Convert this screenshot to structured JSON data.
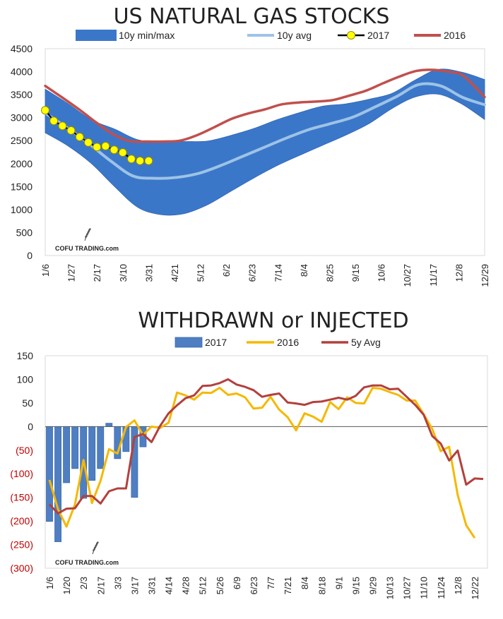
{
  "chart_data": [
    {
      "type": "area",
      "title": "US NATURAL GAS STOCKS",
      "legend": {
        "band": "10y min/max",
        "blank": "",
        "avg": "10y avg",
        "y2017": "2017",
        "y2016": "2016"
      },
      "ylim": [
        0,
        4500
      ],
      "yticks": [
        0,
        500,
        1000,
        1500,
        2000,
        2500,
        3000,
        3500,
        4000,
        4500
      ],
      "xticks": [
        "1/6",
        "1/27",
        "2/17",
        "3/10",
        "3/31",
        "4/21",
        "5/12",
        "6/2",
        "6/23",
        "7/14",
        "8/4",
        "8/25",
        "9/15",
        "10/6",
        "10/27",
        "11/17",
        "12/8",
        "12/29"
      ],
      "watermark": "COFU TRADING.com",
      "band_max": [
        3620,
        3300,
        2950,
        2750,
        2520,
        2470,
        2480,
        2490,
        2610,
        2760,
        2950,
        3110,
        3250,
        3300,
        3400,
        3530,
        3820,
        4050,
        3990,
        3830
      ],
      "band_min": [
        2670,
        2380,
        2000,
        1500,
        1050,
        890,
        910,
        1100,
        1390,
        1680,
        1950,
        2180,
        2400,
        2620,
        2870,
        3200,
        3450,
        3510,
        3300,
        2960
      ],
      "avg": [
        3100,
        2780,
        2430,
        2050,
        1730,
        1680,
        1700,
        1790,
        1960,
        2160,
        2360,
        2560,
        2740,
        2870,
        3010,
        3230,
        3460,
        3720,
        3690,
        3440,
        3280
      ],
      "s2016": [
        3690,
        3440,
        3180,
        2900,
        2640,
        2490,
        2480,
        2480,
        2500,
        2620,
        2790,
        2970,
        3090,
        3180,
        3290,
        3330,
        3350,
        3380,
        3480,
        3590,
        3750,
        3900,
        4020,
        4040,
        3990,
        3960,
        3830,
        3450
      ],
      "s2016_x": [
        0,
        0.5,
        1,
        1.5,
        2,
        2.5,
        3,
        3.5,
        4,
        4.5,
        5,
        5.5,
        6,
        6.5,
        7,
        7.5,
        8,
        8.5,
        9,
        9.5,
        10,
        10.5,
        11,
        11.5,
        12,
        12.25,
        12.5,
        13
      ],
      "s2017": [
        3160,
        2930,
        2820,
        2720,
        2580,
        2460,
        2360,
        2380,
        2300,
        2240,
        2100,
        2060,
        2060
      ]
    },
    {
      "type": "bar",
      "title": "WITHDRAWN or INJECTED",
      "legend": {
        "s2017": "2017",
        "s2016": "2016",
        "avg5": "5y Avg"
      },
      "ylim": [
        -300,
        150
      ],
      "yticks": [
        150,
        100,
        50,
        0,
        -50,
        -100,
        -150,
        -200,
        -250,
        -300
      ],
      "ytick_labels": [
        "150",
        "100",
        "50",
        "0",
        "(50)",
        "(100)",
        "(150)",
        "(200)",
        "(250)",
        "(300)"
      ],
      "xticks": [
        "1/6",
        "1/20",
        "2/3",
        "2/17",
        "3/3",
        "3/17",
        "3/31",
        "4/14",
        "4/28",
        "5/12",
        "5/26",
        "6/9",
        "6/23",
        "7/7",
        "7/21",
        "8/4",
        "8/18",
        "9/1",
        "9/15",
        "9/29",
        "10/13",
        "10/27",
        "11/10",
        "11/24",
        "12/8",
        "12/22"
      ],
      "watermark": "COFU TRADING.com",
      "bars_2017": [
        -201,
        -244,
        -119,
        -89,
        -152,
        -114,
        -89,
        7,
        -68,
        -53,
        -150,
        -43
      ],
      "line_2016": [
        -113,
        -175,
        -212,
        -165,
        -71,
        -162,
        -115,
        -48,
        -57,
        -1,
        13,
        -18,
        0,
        -3,
        8,
        72,
        66,
        57,
        72,
        71,
        82,
        67,
        70,
        62,
        38,
        40,
        63,
        36,
        20,
        -8,
        28,
        21,
        10,
        52,
        37,
        62,
        50,
        49,
        82,
        80,
        73,
        67,
        55,
        55,
        26,
        -5,
        -52,
        -43,
        -145,
        -209,
        -236
      ],
      "line_avg5": [
        -165,
        -184,
        -174,
        -173,
        -147,
        -147,
        -163,
        -137,
        -131,
        -131,
        -22,
        -16,
        -33,
        1,
        28,
        45,
        60,
        66,
        86,
        87,
        92,
        100,
        89,
        84,
        77,
        63,
        67,
        70,
        51,
        49,
        46,
        52,
        53,
        57,
        61,
        57,
        65,
        83,
        87,
        87,
        79,
        80,
        63,
        46,
        25,
        -20,
        -36,
        -72,
        -51,
        -123,
        -110,
        -111
      ]
    }
  ]
}
